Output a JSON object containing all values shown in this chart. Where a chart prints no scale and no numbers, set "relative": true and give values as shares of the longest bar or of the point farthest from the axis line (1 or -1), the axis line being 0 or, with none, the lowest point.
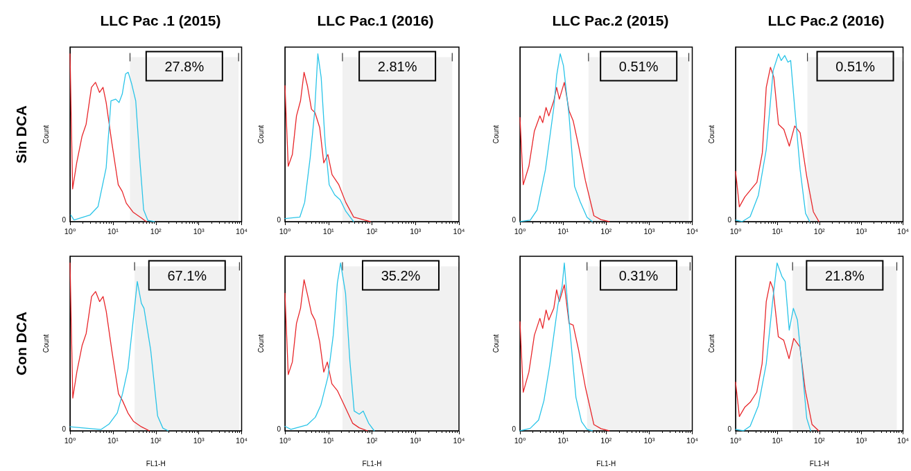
{
  "chart_data": [
    {
      "type": "line",
      "title": "LLC Pac .1 (2015)",
      "subtitle": "Sin DCA",
      "ylabel": "Count",
      "relative": true,
      "log": "x",
      "xlim": [
        1,
        10000
      ],
      "xticks": [
        {
          "value": 1,
          "label": "10⁰"
        },
        {
          "value": 10,
          "label": "10¹"
        },
        {
          "value": 100,
          "label": "10²"
        },
        {
          "value": 1000,
          "label": "10³"
        },
        {
          "value": 10000,
          "label": "10⁴"
        }
      ],
      "annotations": [
        "0"
      ],
      "bands": [
        {
          "axis": "x",
          "from": 25,
          "to": 8500,
          "label": "27.8%",
          "color": "#333333"
        }
      ],
      "series": [
        {
          "color": "#e8262a",
          "x": [
            1,
            1.15,
            1.43,
            1.91,
            2.37,
            3.16,
            3.93,
            4.87,
            5.88,
            6.95,
            9.3,
            13.3,
            16.5,
            20.5,
            29.4,
            45,
            60
          ],
          "values": [
            1.0,
            0.195,
            0.35,
            0.51,
            0.58,
            0.8,
            0.83,
            0.77,
            0.8,
            0.71,
            0.48,
            0.22,
            0.18,
            0.11,
            0.057,
            0.024,
            0
          ]
        },
        {
          "color": "#29c4e8",
          "x": [
            1.04,
            1.24,
            2.94,
            4.5,
            6.95,
            9.0,
            11.6,
            13.9,
            16.5,
            19.7,
            22.7,
            27.4,
            34,
            42,
            52,
            65,
            93
          ],
          "values": [
            0.04,
            0.01,
            0.04,
            0.09,
            0.32,
            0.72,
            0.73,
            0.71,
            0.76,
            0.88,
            0.89,
            0.82,
            0.72,
            0.38,
            0.07,
            0.008,
            0
          ]
        }
      ]
    },
    {
      "type": "line",
      "title": "LLC Pac.1 (2016)",
      "ylabel": "Count",
      "relative": true,
      "log": "x",
      "xlim": [
        1,
        10000
      ],
      "xticks": [
        {
          "value": 1,
          "label": "10⁰"
        },
        {
          "value": 10,
          "label": "10¹"
        },
        {
          "value": 100,
          "label": "10²"
        },
        {
          "value": 1000,
          "label": "10³"
        },
        {
          "value": 10000,
          "label": "10⁴"
        }
      ],
      "annotations": [
        "0"
      ],
      "bands": [
        {
          "axis": "x",
          "from": 21,
          "to": 7000,
          "label": "2.81%",
          "color": "#333333"
        }
      ],
      "series": [
        {
          "color": "#e8262a",
          "x": [
            1,
            1.19,
            1.48,
            1.84,
            2.28,
            2.75,
            3.28,
            4.07,
            4.9,
            6.3,
            7.8,
            9.7,
            12.1,
            17.3,
            25,
            38,
            69,
            92
          ],
          "values": [
            0.81,
            0.33,
            0.4,
            0.63,
            0.72,
            0.89,
            0.81,
            0.67,
            0.65,
            0.56,
            0.35,
            0.4,
            0.28,
            0.22,
            0.115,
            0.027,
            0.009,
            0
          ]
        },
        {
          "color": "#29c4e8",
          "x": [
            1,
            2.2,
            2.84,
            3.8,
            4.8,
            5.7,
            6.8,
            8.4,
            10.4,
            13.9,
            18.6,
            25,
            38
          ],
          "values": [
            0.018,
            0.027,
            0.115,
            0.38,
            0.65,
            1.0,
            0.86,
            0.47,
            0.22,
            0.16,
            0.13,
            0.062,
            0
          ]
        }
      ]
    },
    {
      "type": "line",
      "title": "LLC Pac.2 (2015)",
      "ylabel": "Count",
      "relative": true,
      "log": "x",
      "xlim": [
        1,
        10000
      ],
      "xticks": [
        {
          "value": 1,
          "label": "10⁰"
        },
        {
          "value": 10,
          "label": "10¹"
        },
        {
          "value": 100,
          "label": "10²"
        },
        {
          "value": 1000,
          "label": "10³"
        },
        {
          "value": 10000,
          "label": "10⁴"
        }
      ],
      "annotations": [
        "0"
      ],
      "bands": [
        {
          "axis": "x",
          "from": 39,
          "to": 8300,
          "label": "0.51%",
          "color": "#333333"
        }
      ],
      "series": [
        {
          "color": "#e8262a",
          "x": [
            1,
            1.19,
            1.61,
            2.16,
            2.9,
            3.37,
            4.03,
            4.67,
            6.1,
            7.1,
            8.2,
            10.7,
            13.8,
            17.2,
            23,
            33,
            52,
            76,
            118
          ],
          "values": [
            0.62,
            0.22,
            0.33,
            0.54,
            0.63,
            0.59,
            0.68,
            0.63,
            0.72,
            0.8,
            0.73,
            0.83,
            0.66,
            0.6,
            0.45,
            0.245,
            0.035,
            0.012,
            0
          ]
        },
        {
          "color": "#29c4e8",
          "x": [
            1,
            1.73,
            2.5,
            3.9,
            6.1,
            7.1,
            8.6,
            10.2,
            13.8,
            18.5,
            24.9,
            36,
            48
          ],
          "values": [
            0,
            0.009,
            0.07,
            0.31,
            0.68,
            0.87,
            1.0,
            0.93,
            0.63,
            0.21,
            0.12,
            0.026,
            0
          ]
        }
      ]
    },
    {
      "type": "line",
      "title": "LLC Pac.2 (2016)",
      "ylabel": "Count",
      "relative": true,
      "log": "x",
      "xlim": [
        1,
        10000
      ],
      "xticks": [
        {
          "value": 1,
          "label": "10⁰"
        },
        {
          "value": 10,
          "label": "10¹"
        },
        {
          "value": 100,
          "label": "10²"
        },
        {
          "value": 1000,
          "label": "10³"
        },
        {
          "value": 10000,
          "label": "10⁴"
        }
      ],
      "annotations": [
        "0"
      ],
      "bands": [
        {
          "axis": "x",
          "from": 52,
          "to": 10000,
          "label": "0.51%",
          "color": "#333333"
        }
      ],
      "series": [
        {
          "color": "#e8262a",
          "x": [
            1,
            1.23,
            1.66,
            2.23,
            3.23,
            4.35,
            5.4,
            6.8,
            8.2,
            10.6,
            14.2,
            19.2,
            25.8,
            34.8,
            50,
            72,
            98
          ],
          "values": [
            0.3,
            0.088,
            0.147,
            0.186,
            0.235,
            0.41,
            0.8,
            0.92,
            0.86,
            0.58,
            0.55,
            0.45,
            0.57,
            0.53,
            0.27,
            0.059,
            0
          ]
        },
        {
          "color": "#29c4e8",
          "x": [
            1,
            1.43,
            2.23,
            3.5,
            5.4,
            7.9,
            10.6,
            12.3,
            14.9,
            17.8,
            20.7,
            25.8,
            34.8,
            47,
            59
          ],
          "values": [
            0.01,
            0,
            0.03,
            0.157,
            0.43,
            0.9,
            1.0,
            0.96,
            0.99,
            0.95,
            0.96,
            0.68,
            0.31,
            0.049,
            0
          ]
        }
      ]
    },
    {
      "type": "line",
      "subtitle": "Con DCA",
      "xlabel": "FL1-H",
      "ylabel": "Count",
      "relative": true,
      "log": "x",
      "xlim": [
        1,
        10000
      ],
      "xticks": [
        {
          "value": 1,
          "label": "10⁰"
        },
        {
          "value": 10,
          "label": "10¹"
        },
        {
          "value": 100,
          "label": "10²"
        },
        {
          "value": 1000,
          "label": "10³"
        },
        {
          "value": 10000,
          "label": "10⁴"
        }
      ],
      "annotations": [
        "0"
      ],
      "bands": [
        {
          "axis": "x",
          "from": 32,
          "to": 8900,
          "label": "67.1%",
          "color": "#333333"
        }
      ],
      "series": [
        {
          "color": "#e8262a",
          "x": [
            1,
            1.16,
            1.44,
            1.92,
            2.38,
            3.18,
            3.95,
            4.9,
            5.9,
            7.0,
            9.4,
            13.5,
            16.7,
            22.4,
            30,
            46,
            71
          ],
          "values": [
            1.0,
            0.195,
            0.35,
            0.51,
            0.58,
            0.8,
            0.83,
            0.77,
            0.8,
            0.71,
            0.48,
            0.22,
            0.18,
            0.106,
            0.057,
            0.024,
            0
          ]
        },
        {
          "color": "#29c4e8",
          "x": [
            1,
            5.3,
            8.1,
            12.6,
            16.7,
            22.4,
            30,
            37,
            46,
            53,
            76,
            110,
            146,
            195
          ],
          "values": [
            0.024,
            0.008,
            0.04,
            0.106,
            0.22,
            0.37,
            0.67,
            0.89,
            0.76,
            0.73,
            0.48,
            0.089,
            0.016,
            0
          ]
        }
      ]
    },
    {
      "type": "line",
      "xlabel": "FL1-H",
      "ylabel": "Count",
      "relative": true,
      "log": "x",
      "xlim": [
        1,
        10000
      ],
      "xticks": [
        {
          "value": 1,
          "label": "10⁰"
        },
        {
          "value": 10,
          "label": "10¹"
        },
        {
          "value": 100,
          "label": "10²"
        },
        {
          "value": 1000,
          "label": "10³"
        },
        {
          "value": 10000,
          "label": "10⁴"
        }
      ],
      "annotations": [
        "0"
      ],
      "bands": [
        {
          "axis": "x",
          "from": 21,
          "to": 10000,
          "label": "35.2%",
          "color": "#333333"
        }
      ],
      "series": [
        {
          "color": "#e8262a",
          "x": [
            1,
            1.19,
            1.48,
            1.84,
            2.28,
            2.75,
            3.37,
            4.07,
            4.9,
            6.3,
            7.8,
            9.4,
            12,
            16,
            23,
            36,
            51,
            79
          ],
          "values": [
            0.82,
            0.335,
            0.41,
            0.64,
            0.73,
            0.9,
            0.8,
            0.7,
            0.66,
            0.53,
            0.35,
            0.41,
            0.28,
            0.24,
            0.154,
            0.045,
            0.018,
            0
          ]
        },
        {
          "color": "#29c4e8",
          "x": [
            1,
            1.37,
            3.27,
            5,
            6.7,
            9.7,
            12.9,
            16,
            19,
            24.7,
            31,
            39,
            51,
            63,
            84,
            113
          ],
          "values": [
            0.027,
            0.009,
            0.036,
            0.081,
            0.154,
            0.32,
            0.57,
            0.88,
            1.0,
            0.82,
            0.42,
            0.118,
            0.099,
            0.118,
            0.045,
            0
          ]
        }
      ]
    },
    {
      "type": "line",
      "xlabel": "FL1-H",
      "ylabel": "Count",
      "relative": true,
      "log": "x",
      "xlim": [
        1,
        10000
      ],
      "xticks": [
        {
          "value": 1,
          "label": "10⁰"
        },
        {
          "value": 10,
          "label": "10¹"
        },
        {
          "value": 100,
          "label": "10²"
        },
        {
          "value": 1000,
          "label": "10³"
        },
        {
          "value": 10000,
          "label": "10⁴"
        }
      ],
      "annotations": [
        "0"
      ],
      "bands": [
        {
          "axis": "x",
          "from": 36,
          "to": 8900,
          "label": "0.31%",
          "color": "#333333"
        }
      ],
      "series": [
        {
          "color": "#e8262a",
          "x": [
            1,
            1.19,
            1.61,
            2.16,
            2.9,
            3.37,
            4.03,
            4.67,
            6.1,
            7.1,
            8.2,
            10.7,
            13.8,
            17.2,
            23,
            33,
            52,
            76,
            118
          ],
          "values": [
            0.65,
            0.23,
            0.35,
            0.57,
            0.67,
            0.61,
            0.72,
            0.66,
            0.73,
            0.84,
            0.77,
            0.87,
            0.64,
            0.63,
            0.48,
            0.26,
            0.037,
            0.013,
            0
          ]
        },
        {
          "color": "#29c4e8",
          "x": [
            1,
            1.73,
            2.7,
            3.6,
            4.9,
            6.1,
            7.6,
            9.5,
            10.7,
            12.8,
            15.9,
            19.9,
            26.8,
            36,
            48
          ],
          "values": [
            0,
            0.015,
            0.064,
            0.18,
            0.39,
            0.57,
            0.75,
            0.86,
            1.0,
            0.75,
            0.48,
            0.2,
            0.055,
            0.009,
            0
          ]
        }
      ]
    },
    {
      "type": "line",
      "xlabel": "FL1-H",
      "ylabel": "Count",
      "relative": true,
      "log": "x",
      "xlim": [
        1,
        10000
      ],
      "xticks": [
        {
          "value": 1,
          "label": "10⁰"
        },
        {
          "value": 10,
          "label": "10¹"
        },
        {
          "value": 100,
          "label": "10²"
        },
        {
          "value": 1000,
          "label": "10³"
        },
        {
          "value": 10000,
          "label": "10⁴"
        }
      ],
      "annotations": [
        "0"
      ],
      "bands": [
        {
          "axis": "x",
          "from": 23,
          "to": 7100,
          "label": "21.8%",
          "color": "#333333"
        }
      ],
      "series": [
        {
          "color": "#e8262a",
          "x": [
            1,
            1.23,
            1.65,
            2.23,
            3.2,
            4.3,
            5.4,
            6.75,
            7.8,
            10.5,
            14.1,
            18.9,
            24.5,
            34.4,
            46,
            67,
            97
          ],
          "values": [
            0.29,
            0.085,
            0.14,
            0.17,
            0.23,
            0.4,
            0.77,
            0.89,
            0.85,
            0.56,
            0.54,
            0.43,
            0.55,
            0.5,
            0.245,
            0.038,
            0
          ]
        },
        {
          "color": "#29c4e8",
          "x": [
            1,
            1.54,
            2.23,
            3.5,
            5.4,
            7.8,
            9.8,
            12.8,
            15.3,
            19.1,
            24,
            30,
            37,
            50,
            62
          ],
          "values": [
            0.009,
            0,
            0.028,
            0.15,
            0.4,
            0.79,
            1.0,
            0.92,
            0.89,
            0.6,
            0.73,
            0.66,
            0.43,
            0.075,
            0
          ]
        }
      ]
    }
  ]
}
